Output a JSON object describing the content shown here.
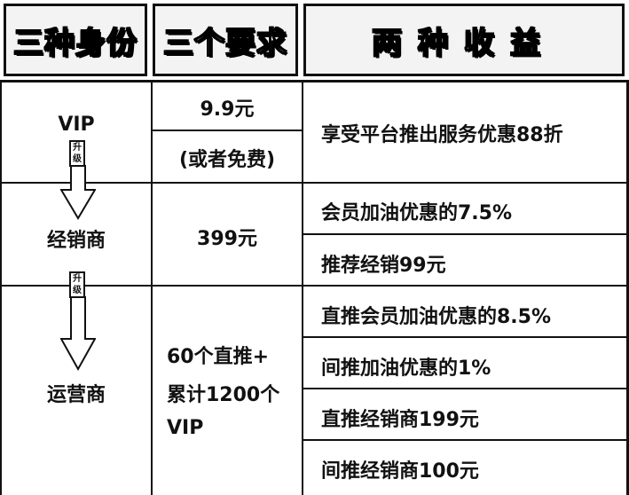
{
  "header": {
    "col1": "三种身份",
    "col2": "三个要求",
    "col3": "两种收益"
  },
  "arrow_label": [
    "升",
    "级"
  ],
  "rows": [
    {
      "identity": "VIP",
      "requirement_lines": [
        "9.9元",
        "(或者免费)"
      ],
      "benefits": [
        "享受平台推出服务优惠88折"
      ]
    },
    {
      "identity": "经销商",
      "requirement_lines": [
        "399元"
      ],
      "benefits": [
        "会员加油优惠的7.5%",
        "推荐经销99元"
      ]
    },
    {
      "identity": "运营商",
      "requirement_lines": [
        "60个直推+",
        "累计1200个",
        "VIP"
      ],
      "benefits": [
        "直推会员加油优惠的8.5%",
        "间推加油优惠的1%",
        "直推经销商199元",
        "间推经销商100元"
      ]
    }
  ]
}
